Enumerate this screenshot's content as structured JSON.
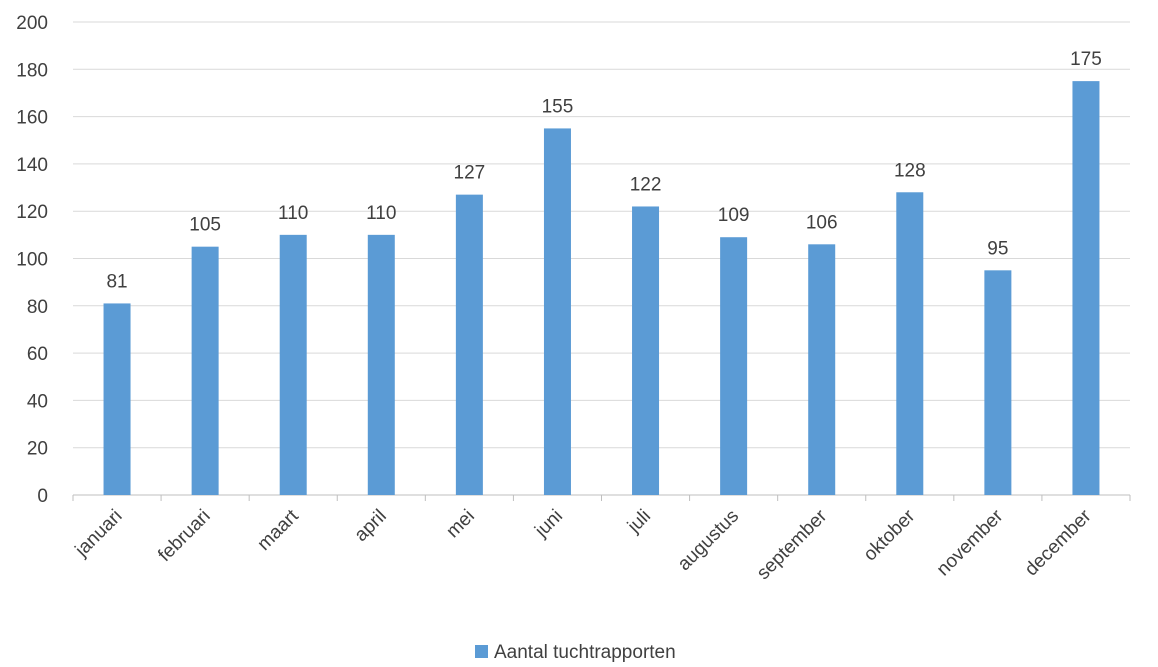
{
  "chart_data": {
    "type": "bar",
    "categories": [
      "januari",
      "februari",
      "maart",
      "april",
      "mei",
      "juni",
      "juli",
      "augustus",
      "september",
      "oktober",
      "november",
      "december"
    ],
    "series": [
      {
        "name": "Aantal tuchtrapporten",
        "values": [
          81,
          105,
          110,
          110,
          127,
          155,
          122,
          109,
          106,
          128,
          95,
          175
        ],
        "color": "#5b9bd5"
      }
    ],
    "title": "",
    "xlabel": "",
    "ylabel": "",
    "ylim": [
      0,
      200
    ],
    "yticks": [
      0,
      20,
      40,
      60,
      80,
      100,
      120,
      140,
      160,
      180,
      200
    ],
    "grid": true,
    "legend_position": "bottom",
    "data_labels": true
  }
}
